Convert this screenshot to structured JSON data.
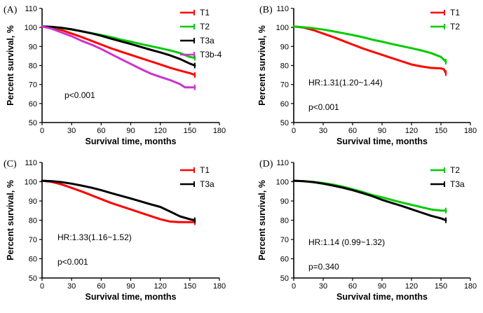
{
  "chart_data": [
    {
      "type": "line",
      "panel_label": "(A)",
      "xlabel": "Survival time, months",
      "ylabel": "Percent survival, %",
      "xlim": [
        0,
        180
      ],
      "ylim": [
        50,
        110
      ],
      "xticks": [
        0,
        30,
        60,
        90,
        120,
        150,
        180
      ],
      "yticks": [
        50,
        60,
        70,
        80,
        90,
        100,
        110
      ],
      "legend_position": "top-right",
      "annotations": [
        "p<0.001"
      ],
      "series": [
        {
          "name": "T1",
          "color": "#ff0000",
          "x": [
            0,
            10,
            20,
            30,
            40,
            50,
            60,
            70,
            80,
            90,
            100,
            110,
            120,
            130,
            140,
            150,
            155
          ],
          "y": [
            100.5,
            99.9,
            98.6,
            96.8,
            95.0,
            93.0,
            91.0,
            89.0,
            87.3,
            85.6,
            83.9,
            82.2,
            80.5,
            78.8,
            77.3,
            76.0,
            75.0
          ]
        },
        {
          "name": "T2",
          "color": "#00cc00",
          "x": [
            0,
            10,
            20,
            30,
            40,
            50,
            60,
            70,
            80,
            90,
            100,
            110,
            120,
            130,
            140,
            150,
            155
          ],
          "y": [
            100.5,
            100.1,
            99.6,
            98.9,
            98.0,
            97.0,
            96.0,
            94.9,
            93.6,
            92.5,
            91.3,
            90.2,
            89.1,
            87.9,
            86.5,
            84.5,
            84.0
          ]
        },
        {
          "name": "T3a",
          "color": "#000000",
          "x": [
            0,
            10,
            20,
            30,
            40,
            50,
            60,
            70,
            80,
            90,
            100,
            110,
            120,
            130,
            140,
            150,
            155
          ],
          "y": [
            100.5,
            100.3,
            99.8,
            99.0,
            98.0,
            96.9,
            95.6,
            94.1,
            92.7,
            91.3,
            89.8,
            88.3,
            86.9,
            85.3,
            83.4,
            81.0,
            80.0
          ]
        },
        {
          "name": "T3b-4",
          "color": "#cc33cc",
          "x": [
            0,
            10,
            20,
            30,
            40,
            50,
            60,
            70,
            80,
            90,
            100,
            110,
            120,
            130,
            140,
            145,
            150,
            155
          ],
          "y": [
            100.5,
            99.3,
            97.3,
            95.4,
            93.0,
            91.0,
            88.7,
            86.0,
            83.4,
            80.8,
            78.2,
            75.8,
            74.0,
            72.3,
            70.2,
            68.5,
            68.5,
            68.5
          ]
        }
      ]
    },
    {
      "type": "line",
      "panel_label": "(B)",
      "xlabel": "Survival time, months",
      "ylabel": "Percent survival, %",
      "xlim": [
        0,
        180
      ],
      "ylim": [
        50,
        110
      ],
      "xticks": [
        0,
        30,
        60,
        90,
        120,
        150,
        180
      ],
      "yticks": [
        50,
        60,
        70,
        80,
        90,
        100,
        110
      ],
      "legend_position": "top-right",
      "annotations": [
        "HR:1.31(1.20~1.44)",
        "p<0.001"
      ],
      "series": [
        {
          "name": "T1",
          "color": "#ff0000",
          "x": [
            0,
            10,
            20,
            30,
            40,
            50,
            60,
            70,
            80,
            90,
            100,
            110,
            120,
            130,
            140,
            150,
            153,
            155
          ],
          "y": [
            100.5,
            99.9,
            98.6,
            96.8,
            95.0,
            93.0,
            91.0,
            89.0,
            87.3,
            85.6,
            83.9,
            82.2,
            80.5,
            79.5,
            78.7,
            78.5,
            78.0,
            76.0
          ]
        },
        {
          "name": "T2",
          "color": "#00cc00",
          "x": [
            0,
            10,
            20,
            30,
            40,
            50,
            60,
            70,
            80,
            90,
            100,
            110,
            120,
            130,
            140,
            150,
            155
          ],
          "y": [
            100.5,
            100.1,
            99.6,
            98.9,
            98.0,
            97.0,
            96.0,
            94.9,
            93.6,
            92.5,
            91.3,
            90.2,
            89.1,
            87.9,
            86.5,
            84.5,
            82.0
          ]
        }
      ]
    },
    {
      "type": "line",
      "panel_label": "(C)",
      "xlabel": "Survival time, months",
      "ylabel": "Percent survival, %",
      "xlim": [
        0,
        180
      ],
      "ylim": [
        50,
        110
      ],
      "xticks": [
        0,
        30,
        60,
        90,
        120,
        150,
        180
      ],
      "yticks": [
        50,
        60,
        70,
        80,
        90,
        100,
        110
      ],
      "legend_position": "top-right",
      "annotations": [
        "HR:1.33(1.16~1.52)",
        "p<0.001"
      ],
      "series": [
        {
          "name": "T1",
          "color": "#ff0000",
          "x": [
            0,
            10,
            20,
            30,
            40,
            50,
            60,
            70,
            80,
            90,
            100,
            110,
            120,
            130,
            140,
            150,
            155
          ],
          "y": [
            100.5,
            99.9,
            98.6,
            96.8,
            95.0,
            93.0,
            91.0,
            89.0,
            87.3,
            85.6,
            83.9,
            82.2,
            80.5,
            79.3,
            79.0,
            79.0,
            79.0
          ]
        },
        {
          "name": "T3a",
          "color": "#000000",
          "x": [
            0,
            10,
            20,
            30,
            40,
            50,
            60,
            70,
            80,
            90,
            100,
            110,
            120,
            130,
            140,
            150,
            155
          ],
          "y": [
            100.5,
            100.3,
            99.8,
            99.0,
            98.0,
            96.9,
            95.6,
            94.1,
            92.7,
            91.3,
            89.8,
            88.3,
            86.9,
            84.5,
            82.0,
            80.5,
            80.0
          ]
        }
      ]
    },
    {
      "type": "line",
      "panel_label": "(D)",
      "xlabel": "Survival time, months",
      "ylabel": "Percent survival, %",
      "xlim": [
        0,
        180
      ],
      "ylim": [
        50,
        110
      ],
      "xticks": [
        0,
        30,
        60,
        90,
        120,
        150,
        180
      ],
      "yticks": [
        50,
        60,
        70,
        80,
        90,
        100,
        110
      ],
      "legend_position": "top-right",
      "annotations": [
        "HR:1.14 (0.99~1.32)",
        "p=0.340"
      ],
      "series": [
        {
          "name": "T2",
          "color": "#00cc00",
          "x": [
            0,
            10,
            20,
            30,
            40,
            50,
            60,
            70,
            80,
            90,
            100,
            110,
            120,
            130,
            140,
            150,
            155
          ],
          "y": [
            100.5,
            100.3,
            99.9,
            99.3,
            98.5,
            97.4,
            96.1,
            94.7,
            93.1,
            91.9,
            90.5,
            89.2,
            88.0,
            86.8,
            85.6,
            85.0,
            85.0
          ]
        },
        {
          "name": "T3a",
          "color": "#000000",
          "x": [
            0,
            10,
            20,
            30,
            40,
            50,
            60,
            70,
            80,
            90,
            100,
            110,
            120,
            130,
            140,
            150,
            155
          ],
          "y": [
            100.5,
            100.3,
            99.8,
            99.0,
            98.0,
            96.9,
            95.6,
            94.1,
            92.5,
            90.6,
            89.0,
            87.4,
            85.7,
            84.0,
            82.3,
            81.0,
            80.0
          ]
        }
      ]
    }
  ]
}
